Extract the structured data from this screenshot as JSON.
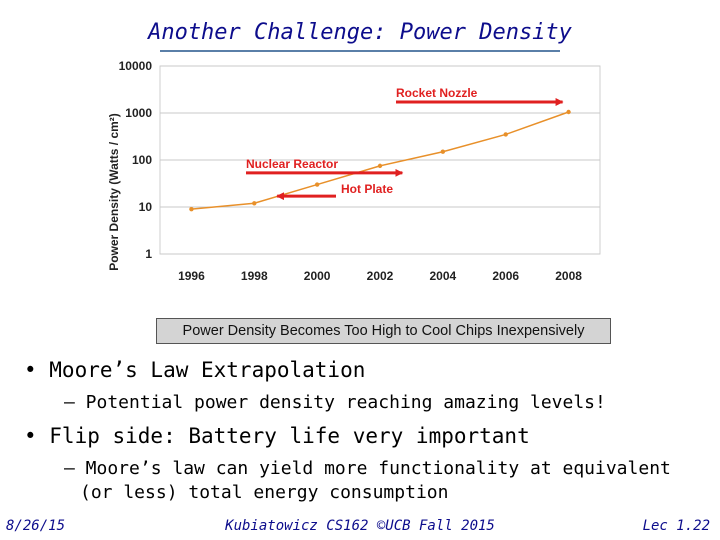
{
  "slide": {
    "title": "Another Challenge: Power Density",
    "caption": "Power Density Becomes Too High to Cool Chips Inexpensively",
    "bullets": [
      "•  Moore’s Law Extrapolation",
      "–  Potential power density reaching amazing levels!",
      "•  Flip side: Battery life very important",
      "–  Moore’s law can yield more functionality at equivalent",
      "(or less) total energy consumption"
    ],
    "footer": {
      "date": "8/26/15",
      "course": "Kubiatowicz CS162 ©UCB Fall 2015",
      "lecture": "Lec 1.22"
    }
  },
  "chart_data": {
    "type": "line",
    "title": "",
    "xlabel": "",
    "ylabel": "Power Density (Watts / cm²)",
    "y_scale": "log",
    "ylim": [
      1,
      10000
    ],
    "y_ticks": [
      1,
      10,
      100,
      1000,
      10000
    ],
    "y_tick_labels": [
      "1",
      "10",
      "100",
      "1000",
      "10000"
    ],
    "x_ticks": [
      1996,
      1998,
      2000,
      2002,
      2004,
      2006,
      2008
    ],
    "x_tick_labels": [
      "1996",
      "1998",
      "2000",
      "2002",
      "2004",
      "2006",
      "2008"
    ],
    "xlim": [
      1995,
      2009
    ],
    "grid": true,
    "series": [
      {
        "name": "Power density",
        "color": "#e8902a",
        "x": [
          1996,
          1998,
          2000,
          2002,
          2004,
          2006,
          2008
        ],
        "y": [
          9,
          12,
          30,
          75,
          150,
          350,
          1050
        ]
      }
    ],
    "annotations": [
      {
        "text": "Rocket Nozzle",
        "x": 2008,
        "y": 1050,
        "color": "#e02020"
      },
      {
        "text": "Nuclear Reactor",
        "x": 2002.9,
        "y": 75,
        "color": "#e02020"
      },
      {
        "text": "Hot Plate",
        "x": 1998.6,
        "y": 17,
        "color": "#e02020"
      }
    ]
  }
}
